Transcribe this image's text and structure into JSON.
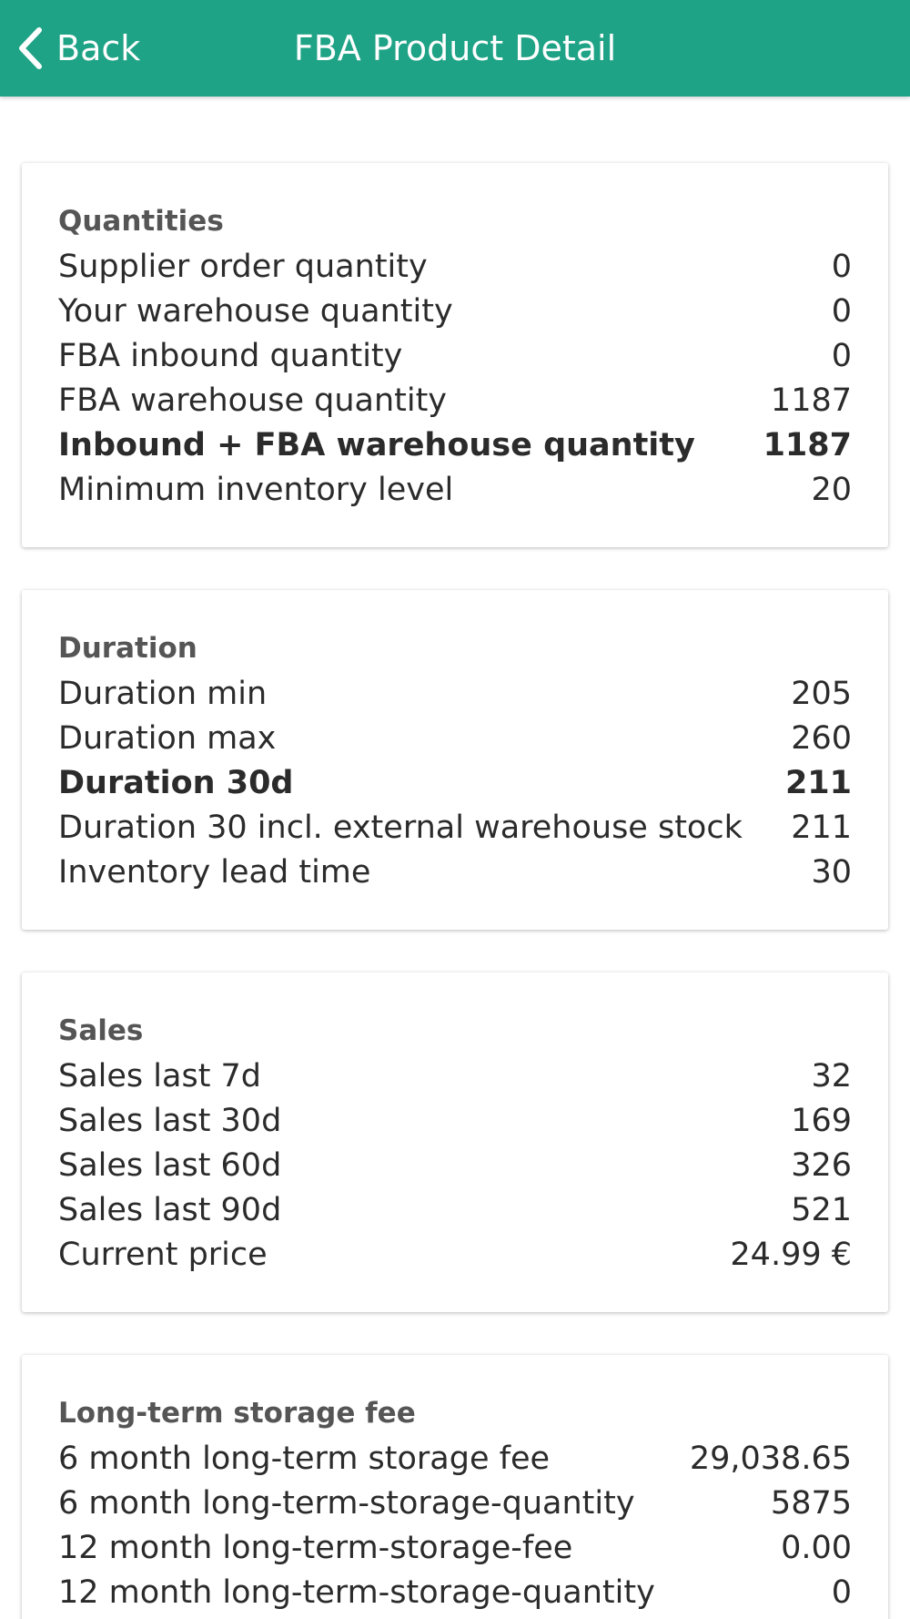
{
  "header": {
    "back_label": "Back",
    "title": "FBA Product Detail"
  },
  "sections": [
    {
      "title": "Quantities",
      "rows": [
        {
          "label": "Supplier order quantity",
          "value": "0",
          "bold": false
        },
        {
          "label": "Your warehouse quantity",
          "value": "0",
          "bold": false
        },
        {
          "label": "FBA inbound quantity",
          "value": "0",
          "bold": false
        },
        {
          "label": "FBA warehouse quantity",
          "value": "1187",
          "bold": false
        },
        {
          "label": "Inbound + FBA warehouse quantity",
          "value": "1187",
          "bold": true
        },
        {
          "label": "Minimum inventory level",
          "value": "20",
          "bold": false
        }
      ]
    },
    {
      "title": "Duration",
      "rows": [
        {
          "label": "Duration min",
          "value": "205",
          "bold": false
        },
        {
          "label": "Duration max",
          "value": "260",
          "bold": false
        },
        {
          "label": "Duration 30d",
          "value": "211",
          "bold": true
        },
        {
          "label": "Duration 30 incl. external warehouse stock",
          "value": "211",
          "bold": false
        },
        {
          "label": "Inventory lead time",
          "value": "30",
          "bold": false
        }
      ]
    },
    {
      "title": "Sales",
      "rows": [
        {
          "label": "Sales last 7d",
          "value": "32",
          "bold": false
        },
        {
          "label": "Sales last 30d",
          "value": "169",
          "bold": false
        },
        {
          "label": "Sales last 60d",
          "value": "326",
          "bold": false
        },
        {
          "label": "Sales last 90d",
          "value": "521",
          "bold": false
        },
        {
          "label": "Current price",
          "value": "24.99 €",
          "bold": false
        }
      ]
    },
    {
      "title": "Long-term storage fee",
      "rows": [
        {
          "label": "6 month long-term storage fee",
          "value": "29,038.65",
          "bold": false
        },
        {
          "label": "6 month long-term-storage-quantity",
          "value": "5875",
          "bold": false
        },
        {
          "label": "12 month long-term-storage-fee",
          "value": "0.00",
          "bold": false
        },
        {
          "label": "12 month long-term-storage-quantity",
          "value": "0",
          "bold": false
        }
      ]
    }
  ],
  "colors": {
    "appbar": "#1fa386",
    "section_title": "#555555",
    "text": "#2b2b2b"
  }
}
